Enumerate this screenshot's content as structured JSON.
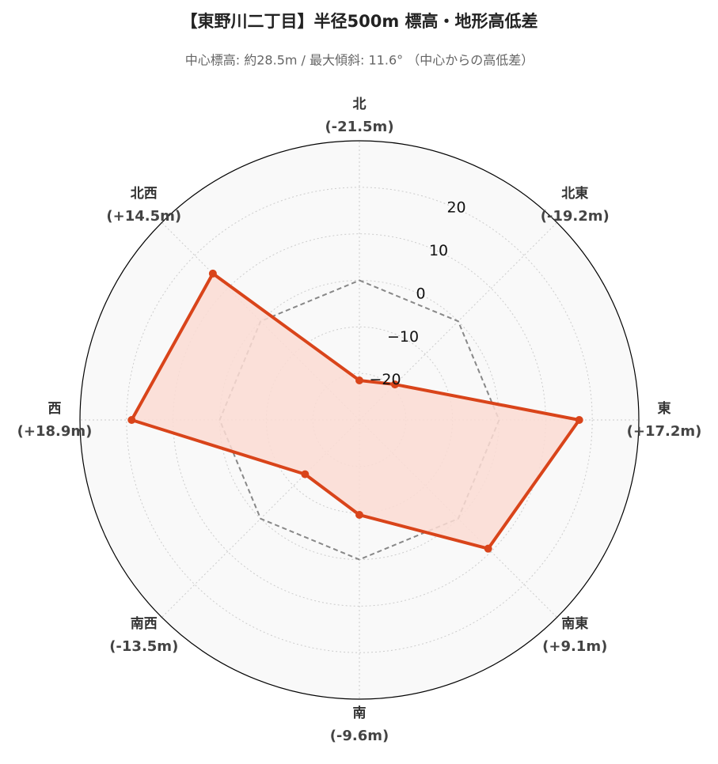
{
  "chart_data": {
    "type": "radar",
    "title": "【東野川二丁目】半径500m 標高・地形高低差",
    "subtitle": "中心標高: 約28.5m / 最大傾斜: 11.6° （中心からの高低差）",
    "categories": [
      "北",
      "北東",
      "東",
      "南東",
      "南",
      "南西",
      "西",
      "北西"
    ],
    "values": [
      -21.5,
      -19.2,
      17.2,
      9.1,
      -9.6,
      -13.5,
      18.9,
      14.5
    ],
    "value_labels": [
      "(-21.5m)",
      "(-19.2m)",
      "(+17.2m)",
      "(+9.1m)",
      "(-9.6m)",
      "(-13.5m)",
      "(+18.9m)",
      "(+14.5m)"
    ],
    "color": "#d9441a",
    "fill_color": "#fcdcd3",
    "ylim": [
      -30,
      30
    ],
    "yticks": [
      {
        "value": -20,
        "label": "−20"
      },
      {
        "value": -10,
        "label": "−10"
      },
      0,
      10,
      20
    ],
    "reference_line": {
      "value": 0,
      "color": "#888888"
    },
    "grid": true
  }
}
